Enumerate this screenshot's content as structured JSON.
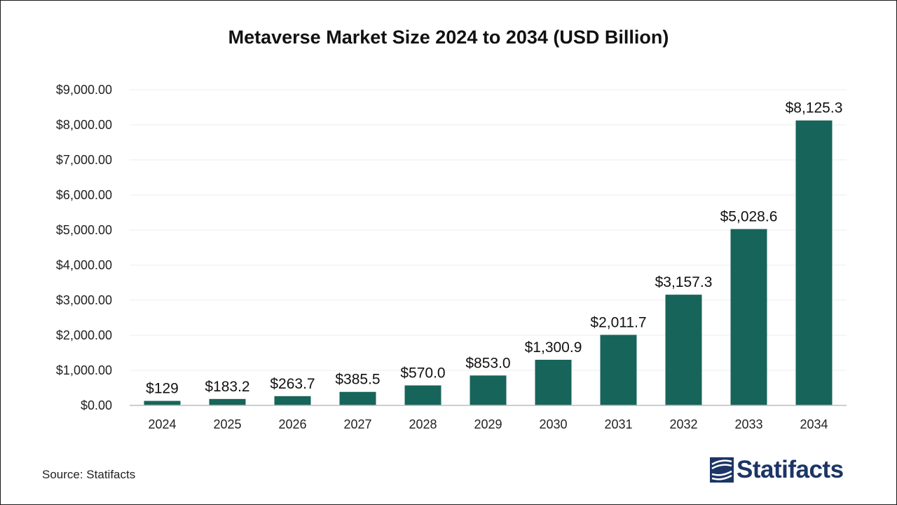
{
  "chart_data": {
    "type": "bar",
    "title": "Metaverse Market Size 2024 to 2034 (USD Billion)",
    "xlabel": "",
    "ylabel": "",
    "categories": [
      "2024",
      "2025",
      "2026",
      "2027",
      "2028",
      "2029",
      "2030",
      "2031",
      "2032",
      "2033",
      "2034"
    ],
    "values": [
      129,
      183.2,
      263.7,
      385.5,
      570.0,
      853.0,
      1300.9,
      2011.7,
      3157.3,
      5028.6,
      8125.3
    ],
    "data_labels": [
      "$129",
      "$183.2",
      "$263.7",
      "$385.5",
      "$570.0",
      "$853.0",
      "$1,300.9",
      "$2,011.7",
      "$3,157.3",
      "$5,028.6",
      "$8,125.3"
    ],
    "ylim": [
      0,
      9000
    ],
    "y_ticks": [
      0,
      1000,
      2000,
      3000,
      4000,
      5000,
      6000,
      7000,
      8000,
      9000
    ],
    "y_tick_labels": [
      "$0.00",
      "$1,000.00",
      "$2,000.00",
      "$3,000.00",
      "$4,000.00",
      "$5,000.00",
      "$6,000.00",
      "$7,000.00",
      "$8,000.00",
      "$9,000.00"
    ],
    "grid": true,
    "legend": "none",
    "bar_color": "#17645a"
  },
  "footer": {
    "source": "Source: Statifacts",
    "brand": "Statifacts",
    "brand_color": "#1c3566"
  }
}
